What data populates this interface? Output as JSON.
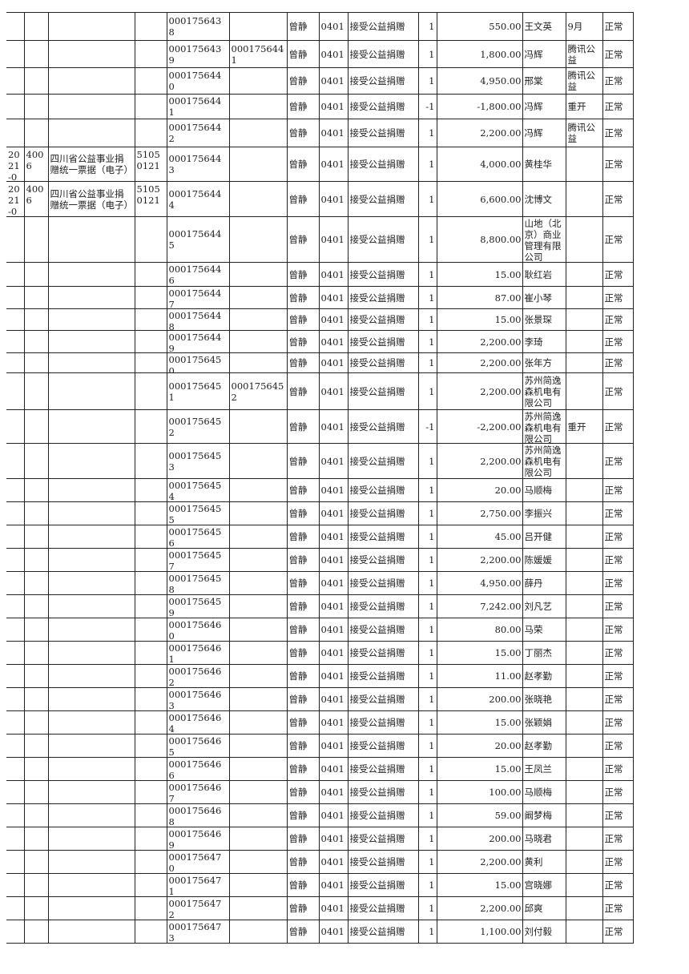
{
  "columns": [
    "date",
    "code",
    "invoice_type",
    "invoice_code",
    "invoice_number",
    "original_number",
    "issuer",
    "dept_code",
    "item",
    "quantity",
    "amount",
    "donor",
    "remark",
    "status"
  ],
  "rows": [
    [
      "",
      "",
      "",
      "",
      "0001756438",
      "",
      "曾静",
      "0401",
      "接受公益捐赠",
      "1",
      "550.00",
      "王文英",
      "9月",
      "正常"
    ],
    [
      "",
      "",
      "",
      "",
      "0001756439",
      "0001756441",
      "曾静",
      "0401",
      "接受公益捐赠",
      "1",
      "1,800.00",
      "冯辉",
      "腾讯公益",
      "正常"
    ],
    [
      "",
      "",
      "",
      "",
      "0001756440",
      "",
      "曾静",
      "0401",
      "接受公益捐赠",
      "1",
      "4,950.00",
      "邢棠",
      "腾讯公益",
      "正常"
    ],
    [
      "",
      "",
      "",
      "",
      "0001756441",
      "",
      "曾静",
      "0401",
      "接受公益捐赠",
      "-1",
      "-1,800.00",
      "冯辉",
      "重开",
      "正常"
    ],
    [
      "",
      "",
      "",
      "",
      "0001756442",
      "",
      "曾静",
      "0401",
      "接受公益捐赠",
      "1",
      "2,200.00",
      "冯辉",
      "腾讯公益",
      "正常"
    ],
    [
      "2021-0",
      "4006",
      "四川省公益事业捐赠统一票据（电子）",
      "51050121",
      "0001756443",
      "",
      "曾静",
      "0401",
      "接受公益捐赠",
      "1",
      "4,000.00",
      "黄桂华",
      "",
      "正常"
    ],
    [
      "2021-0",
      "4006",
      "四川省公益事业捐赠统一票据（电子）",
      "51050121",
      "0001756444",
      "",
      "曾静",
      "0401",
      "接受公益捐赠",
      "1",
      "6,600.00",
      "沈博文",
      "",
      "正常"
    ],
    [
      "",
      "",
      "",
      "",
      "0001756445",
      "",
      "曾静",
      "0401",
      "接受公益捐赠",
      "1",
      "8,800.00",
      "山地（北京）商业管理有限公司",
      "",
      "正常"
    ],
    [
      "",
      "",
      "",
      "",
      "0001756446",
      "",
      "曾静",
      "0401",
      "接受公益捐赠",
      "1",
      "15.00",
      "耿红岩",
      "",
      "正常"
    ],
    [
      "",
      "",
      "",
      "",
      "0001756447",
      "",
      "曾静",
      "0401",
      "接受公益捐赠",
      "1",
      "87.00",
      "崔小琴",
      "",
      "正常"
    ],
    [
      "",
      "",
      "",
      "",
      "0001756448",
      "",
      "曾静",
      "0401",
      "接受公益捐赠",
      "1",
      "15.00",
      "张景琛",
      "",
      "正常"
    ],
    [
      "",
      "",
      "",
      "",
      "0001756449",
      "",
      "曾静",
      "0401",
      "接受公益捐赠",
      "1",
      "2,200.00",
      "李琦",
      "",
      "正常"
    ],
    [
      "",
      "",
      "",
      "",
      "0001756450",
      "",
      "曾静",
      "0401",
      "接受公益捐赠",
      "1",
      "2,200.00",
      "张年方",
      "",
      "正常"
    ],
    [
      "",
      "",
      "",
      "",
      "0001756451",
      "0001756452",
      "曾静",
      "0401",
      "接受公益捐赠",
      "1",
      "2,200.00",
      "苏州简逸森机电有限公司",
      "",
      "正常"
    ],
    [
      "",
      "",
      "",
      "",
      "0001756452",
      "",
      "曾静",
      "0401",
      "接受公益捐赠",
      "-1",
      "-2,200.00",
      "苏州简逸森机电有限公司",
      "重开",
      "正常"
    ],
    [
      "",
      "",
      "",
      "",
      "0001756453",
      "",
      "曾静",
      "0401",
      "接受公益捐赠",
      "1",
      "2,200.00",
      "苏州简逸森机电有限公司",
      "",
      "正常"
    ],
    [
      "",
      "",
      "",
      "",
      "0001756454",
      "",
      "曾静",
      "0401",
      "接受公益捐赠",
      "1",
      "20.00",
      "马顺梅",
      "",
      "正常"
    ],
    [
      "",
      "",
      "",
      "",
      "0001756455",
      "",
      "曾静",
      "0401",
      "接受公益捐赠",
      "1",
      "2,750.00",
      "李振兴",
      "",
      "正常"
    ],
    [
      "",
      "",
      "",
      "",
      "0001756456",
      "",
      "曾静",
      "0401",
      "接受公益捐赠",
      "1",
      "45.00",
      "吕开健",
      "",
      "正常"
    ],
    [
      "",
      "",
      "",
      "",
      "0001756457",
      "",
      "曾静",
      "0401",
      "接受公益捐赠",
      "1",
      "2,200.00",
      "陈媛媛",
      "",
      "正常"
    ],
    [
      "",
      "",
      "",
      "",
      "0001756458",
      "",
      "曾静",
      "0401",
      "接受公益捐赠",
      "1",
      "4,950.00",
      "薛丹",
      "",
      "正常"
    ],
    [
      "",
      "",
      "",
      "",
      "0001756459",
      "",
      "曾静",
      "0401",
      "接受公益捐赠",
      "1",
      "7,242.00",
      "刘凡艺",
      "",
      "正常"
    ],
    [
      "",
      "",
      "",
      "",
      "0001756460",
      "",
      "曾静",
      "0401",
      "接受公益捐赠",
      "1",
      "80.00",
      "马荣",
      "",
      "正常"
    ],
    [
      "",
      "",
      "",
      "",
      "0001756461",
      "",
      "曾静",
      "0401",
      "接受公益捐赠",
      "1",
      "15.00",
      "丁丽杰",
      "",
      "正常"
    ],
    [
      "",
      "",
      "",
      "",
      "0001756462",
      "",
      "曾静",
      "0401",
      "接受公益捐赠",
      "1",
      "11.00",
      "赵孝勤",
      "",
      "正常"
    ],
    [
      "",
      "",
      "",
      "",
      "0001756463",
      "",
      "曾静",
      "0401",
      "接受公益捐赠",
      "1",
      "200.00",
      "张晓艳",
      "",
      "正常"
    ],
    [
      "",
      "",
      "",
      "",
      "0001756464",
      "",
      "曾静",
      "0401",
      "接受公益捐赠",
      "1",
      "15.00",
      "张颖娟",
      "",
      "正常"
    ],
    [
      "",
      "",
      "",
      "",
      "0001756465",
      "",
      "曾静",
      "0401",
      "接受公益捐赠",
      "1",
      "20.00",
      "赵孝勤",
      "",
      "正常"
    ],
    [
      "",
      "",
      "",
      "",
      "0001756466",
      "",
      "曾静",
      "0401",
      "接受公益捐赠",
      "1",
      "15.00",
      "王凤兰",
      "",
      "正常"
    ],
    [
      "",
      "",
      "",
      "",
      "0001756467",
      "",
      "曾静",
      "0401",
      "接受公益捐赠",
      "1",
      "100.00",
      "马顺梅",
      "",
      "正常"
    ],
    [
      "",
      "",
      "",
      "",
      "0001756468",
      "",
      "曾静",
      "0401",
      "接受公益捐赠",
      "1",
      "59.00",
      "阚梦梅",
      "",
      "正常"
    ],
    [
      "",
      "",
      "",
      "",
      "0001756469",
      "",
      "曾静",
      "0401",
      "接受公益捐赠",
      "1",
      "200.00",
      "马晓君",
      "",
      "正常"
    ],
    [
      "",
      "",
      "",
      "",
      "0001756470",
      "",
      "曾静",
      "0401",
      "接受公益捐赠",
      "1",
      "2,200.00",
      "黄利",
      "",
      "正常"
    ],
    [
      "",
      "",
      "",
      "",
      "0001756471",
      "",
      "曾静",
      "0401",
      "接受公益捐赠",
      "1",
      "15.00",
      "宫晓娜",
      "",
      "正常"
    ],
    [
      "",
      "",
      "",
      "",
      "0001756472",
      "",
      "曾静",
      "0401",
      "接受公益捐赠",
      "1",
      "2,200.00",
      "邱爽",
      "",
      "正常"
    ],
    [
      "",
      "",
      "",
      "",
      "0001756473",
      "",
      "曾静",
      "0401",
      "接受公益捐赠",
      "1",
      "1,100.00",
      "刘付毅",
      "",
      "正常"
    ]
  ]
}
